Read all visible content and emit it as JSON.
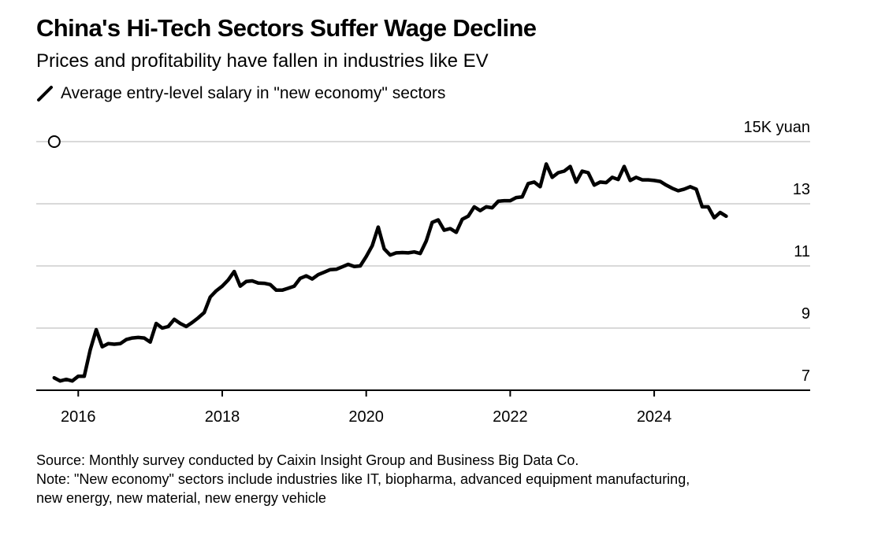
{
  "header": {
    "title": "China's Hi-Tech Sectors Suffer Wage Decline",
    "subtitle": "Prices and profitability have fallen in industries like EV"
  },
  "footer": {
    "source": "Source: Monthly survey conducted by Caixin Insight Group and Business Big Data Co.",
    "note_line1": "Note: \"New economy\" sectors include industries like IT, biopharma, advanced equipment manufacturing,",
    "note_line2": "new energy, new material, new energy vehicle"
  },
  "colors": {
    "line": "#000000",
    "grid": "#d9d9d9",
    "axis": "#000000",
    "text": "#000000"
  },
  "chart_data": {
    "type": "line",
    "title": "China's Hi-Tech Sectors Suffer Wage Decline",
    "subtitle": "Prices and profitability have fallen in industries like EV",
    "xlabel": "",
    "ylabel": "",
    "y_unit_label": "15K yuan",
    "legend": {
      "placement": "top-left",
      "entries": [
        "Average entry-level salary in \"new economy\" sectors"
      ]
    },
    "grid": true,
    "xlim": [
      "2015-06",
      "2026-03"
    ],
    "ylim": [
      7,
      15
    ],
    "y_axis_position": "right",
    "x_tick_labels": [
      "2016",
      "2018",
      "2020",
      "2022",
      "2024"
    ],
    "x_ticks": [
      "2016-01",
      "2018-01",
      "2020-01",
      "2022-01",
      "2024-01"
    ],
    "y_ticks": [
      7,
      9,
      11,
      13,
      15
    ],
    "y_tick_labels": [
      "7",
      "9",
      "11",
      "13",
      "15K yuan"
    ],
    "annotations": [
      {
        "type": "hollow-circle-marker",
        "x": "2015-09",
        "y": 15
      }
    ],
    "series": [
      {
        "name": "Average entry-level salary in \"new economy\" sectors",
        "x": [
          "2015-09",
          "2015-10",
          "2015-11",
          "2015-12",
          "2016-01",
          "2016-02",
          "2016-03",
          "2016-04",
          "2016-05",
          "2016-06",
          "2016-07",
          "2016-08",
          "2016-09",
          "2016-10",
          "2016-11",
          "2016-12",
          "2017-01",
          "2017-02",
          "2017-03",
          "2017-04",
          "2017-05",
          "2017-06",
          "2017-07",
          "2017-08",
          "2017-09",
          "2017-10",
          "2017-11",
          "2017-12",
          "2018-01",
          "2018-02",
          "2018-03",
          "2018-04",
          "2018-05",
          "2018-06",
          "2018-07",
          "2018-08",
          "2018-09",
          "2018-10",
          "2018-11",
          "2018-12",
          "2019-01",
          "2019-02",
          "2019-03",
          "2019-04",
          "2019-05",
          "2019-06",
          "2019-07",
          "2019-08",
          "2019-09",
          "2019-10",
          "2019-11",
          "2019-12",
          "2020-01",
          "2020-02",
          "2020-03",
          "2020-04",
          "2020-05",
          "2020-06",
          "2020-07",
          "2020-08",
          "2020-09",
          "2020-10",
          "2020-11",
          "2020-12",
          "2021-01",
          "2021-02",
          "2021-03",
          "2021-04",
          "2021-05",
          "2021-06",
          "2021-07",
          "2021-08",
          "2021-09",
          "2021-10",
          "2021-11",
          "2021-12",
          "2022-01",
          "2022-02",
          "2022-03",
          "2022-04",
          "2022-05",
          "2022-06",
          "2022-07",
          "2022-08",
          "2022-09",
          "2022-10",
          "2022-11",
          "2022-12",
          "2023-01",
          "2023-02",
          "2023-03",
          "2023-04",
          "2023-05",
          "2023-06",
          "2023-07",
          "2023-08",
          "2023-09",
          "2023-10",
          "2023-11",
          "2023-12",
          "2024-01",
          "2024-02",
          "2024-03",
          "2024-04",
          "2024-05",
          "2024-06",
          "2024-07",
          "2024-08",
          "2024-09",
          "2024-10",
          "2024-11",
          "2024-12",
          "2025-01"
        ],
        "values": [
          7.4,
          7.3,
          7.35,
          7.3,
          7.45,
          7.45,
          8.3,
          8.95,
          8.4,
          8.5,
          8.48,
          8.5,
          8.63,
          8.68,
          8.7,
          8.68,
          8.55,
          9.15,
          9.0,
          9.05,
          9.28,
          9.15,
          9.05,
          9.18,
          9.33,
          9.5,
          10.0,
          10.2,
          10.35,
          10.55,
          10.82,
          10.35,
          10.5,
          10.52,
          10.45,
          10.44,
          10.4,
          10.22,
          10.22,
          10.28,
          10.35,
          10.6,
          10.68,
          10.58,
          10.72,
          10.8,
          10.88,
          10.89,
          10.97,
          11.05,
          10.98,
          11.0,
          11.3,
          11.65,
          12.25,
          11.55,
          11.35,
          11.42,
          11.43,
          11.42,
          11.45,
          11.4,
          11.8,
          12.4,
          12.48,
          12.15,
          12.2,
          12.08,
          12.5,
          12.6,
          12.9,
          12.78,
          12.9,
          12.87,
          13.08,
          13.1,
          13.1,
          13.2,
          13.22,
          13.65,
          13.7,
          13.55,
          14.28,
          13.85,
          14.0,
          14.05,
          14.2,
          13.7,
          14.05,
          14.0,
          13.6,
          13.7,
          13.68,
          13.85,
          13.78,
          14.2,
          13.75,
          13.85,
          13.77,
          13.77,
          13.75,
          13.72,
          13.6,
          13.5,
          13.42,
          13.47,
          13.55,
          13.47,
          12.9,
          12.9,
          12.55,
          12.72,
          12.6
        ]
      }
    ]
  }
}
